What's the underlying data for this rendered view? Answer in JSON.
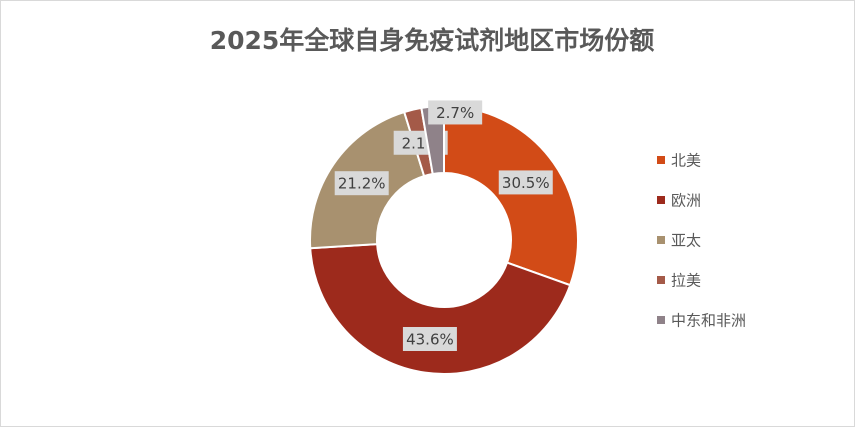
{
  "chart_data": {
    "type": "donut",
    "title": "2025年全球自身免疫试剂地区市场份额",
    "categories": [
      "北美",
      "欧洲",
      "亚太",
      "拉美",
      "中东和非洲"
    ],
    "values": [
      30.5,
      43.6,
      21.2,
      2.1,
      2.7
    ],
    "value_labels": [
      "30.5%",
      "43.6%",
      "21.2%",
      "2.1%",
      "2.7%"
    ],
    "colors": [
      "#d24b17",
      "#9d2a1c",
      "#a8916f",
      "#a45a48",
      "#8f8289"
    ],
    "legend": "right"
  }
}
